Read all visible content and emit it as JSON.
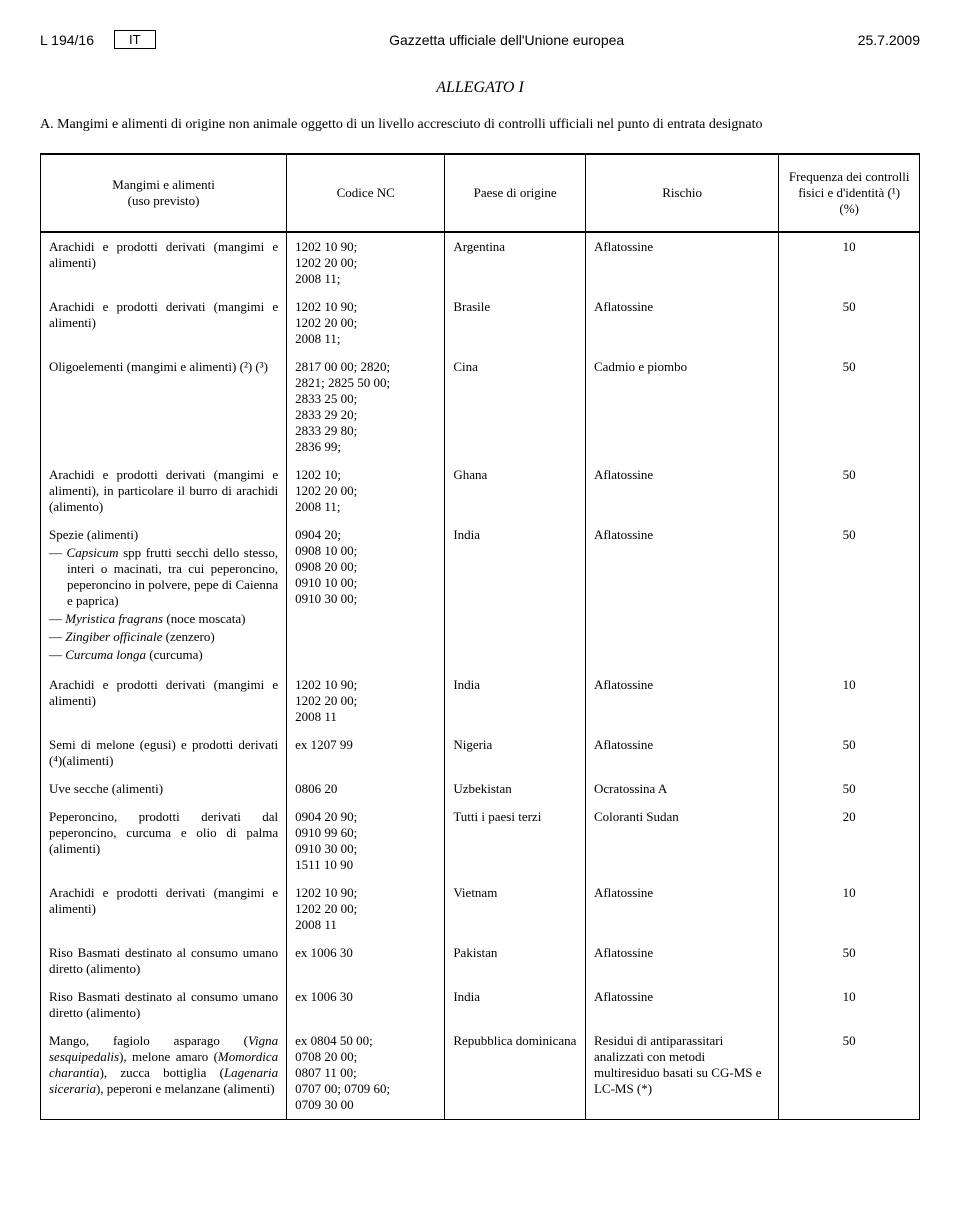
{
  "header": {
    "page_ref": "L 194/16",
    "lang": "IT",
    "center": "Gazzetta ufficiale dell'Unione europea",
    "date": "25.7.2009"
  },
  "annex_title": "ALLEGATO I",
  "intro": "A.  Mangimi e alimenti di origine non animale oggetto di un livello accresciuto di controlli ufficiali nel punto di entrata designato",
  "columns": {
    "c1": "Mangimi e alimenti\n(uso previsto)",
    "c2": "Codice NC",
    "c3": "Paese di origine",
    "c4": "Rischio",
    "c5": "Frequenza dei controlli fisici e d'identità (¹)\n(%)"
  },
  "rows": [
    {
      "product_html": "Arachidi e prodotti derivati (mangimi e alimenti)",
      "code": "1202 10 90;\n1202 20 00;\n2008 11;",
      "origin": "Argentina",
      "risk": "Aflatossine",
      "freq": "10"
    },
    {
      "product_html": "Arachidi e prodotti derivati (mangimi e alimenti)",
      "code": "1202 10 90;\n1202 20 00;\n2008 11;",
      "origin": "Brasile",
      "risk": "Aflatossine",
      "freq": "50"
    },
    {
      "product_html": "Oligoelementi (mangimi e alimenti) (²) (³)",
      "code": "2817 00 00; 2820;\n2821; 2825 50 00;\n2833 25 00;\n2833 29 20;\n2833 29 80;\n2836 99;",
      "origin": "Cina",
      "risk": "Cadmio e piombo",
      "freq": "50"
    },
    {
      "product_html": "Arachidi e prodotti derivati (mangimi e alimenti), in particolare il burro di arachidi (alimento)",
      "code": "1202 10;\n1202 20 00;\n2008 11;",
      "origin": "Ghana",
      "risk": "Aflatossine",
      "freq": "50"
    },
    {
      "product_html": "Spezie (alimenti)<ul class=\"dash\"><li><em>Capsicum</em> spp frutti secchi dello stesso, interi o macinati, tra cui peperoncino, peperoncino in polvere, pepe di Caienna e paprica)</li><li><em>Myristica fragrans</em> (noce moscata)</li><li><em>Zingiber officinale</em> (zenzero)</li><li><em>Curcuma longa</em> (curcuma)</li></ul>",
      "code": "0904 20;\n0908 10 00;\n0908 20 00;\n0910 10 00;\n0910 30 00;",
      "origin": "India",
      "risk": "Aflatossine",
      "freq": "50"
    },
    {
      "product_html": "Arachidi e prodotti derivati (mangimi e alimenti)",
      "code": "1202 10 90;\n1202 20 00;\n2008 11",
      "origin": "India",
      "risk": "Aflatossine",
      "freq": "10"
    },
    {
      "product_html": "Semi di melone (egusi) e prodotti derivati (⁴)(alimenti)",
      "code": "ex 1207 99",
      "origin": "Nigeria",
      "risk": "Aflatossine",
      "freq": "50"
    },
    {
      "product_html": "Uve secche (alimenti)",
      "code": "0806 20",
      "origin": "Uzbekistan",
      "risk": "Ocratossina A",
      "freq": "50"
    },
    {
      "product_html": "Peperoncino, prodotti derivati dal peperoncino, curcuma e olio di palma (alimenti)",
      "code": "0904 20 90;\n0910 99 60;\n0910 30 00;\n1511 10 90",
      "origin": "Tutti i paesi terzi",
      "risk": "Coloranti Sudan",
      "freq": "20"
    },
    {
      "product_html": "Arachidi e prodotti derivati (mangimi e alimenti)",
      "code": "1202 10 90;\n1202 20 00;\n2008 11",
      "origin": "Vietnam",
      "risk": "Aflatossine",
      "freq": "10"
    },
    {
      "product_html": "Riso Basmati destinato al consumo umano diretto (alimento)",
      "code": "ex 1006 30",
      "origin": "Pakistan",
      "risk": "Aflatossine",
      "freq": "50"
    },
    {
      "product_html": "Riso Basmati destinato al consumo umano diretto (alimento)",
      "code": "ex 1006 30",
      "origin": "India",
      "risk": "Aflatossine",
      "freq": "10"
    },
    {
      "product_html": "Mango, fagiolo asparago (<em>Vigna sesquipedalis</em>), melone amaro (<em>Momordica charantia</em>), zucca bottiglia (<em>Lagenaria siceraria</em>), peperoni e melanzane (alimenti)",
      "code": "ex 0804 50 00;\n0708 20 00;\n0807 11 00;\n0707 00; 0709 60;\n0709 30 00",
      "origin": "Repubblica dominicana",
      "risk": "Residui di antiparassitari analizzati con metodi multiresiduo basati su CG-MS e LC-MS (*)",
      "freq": "50"
    }
  ]
}
